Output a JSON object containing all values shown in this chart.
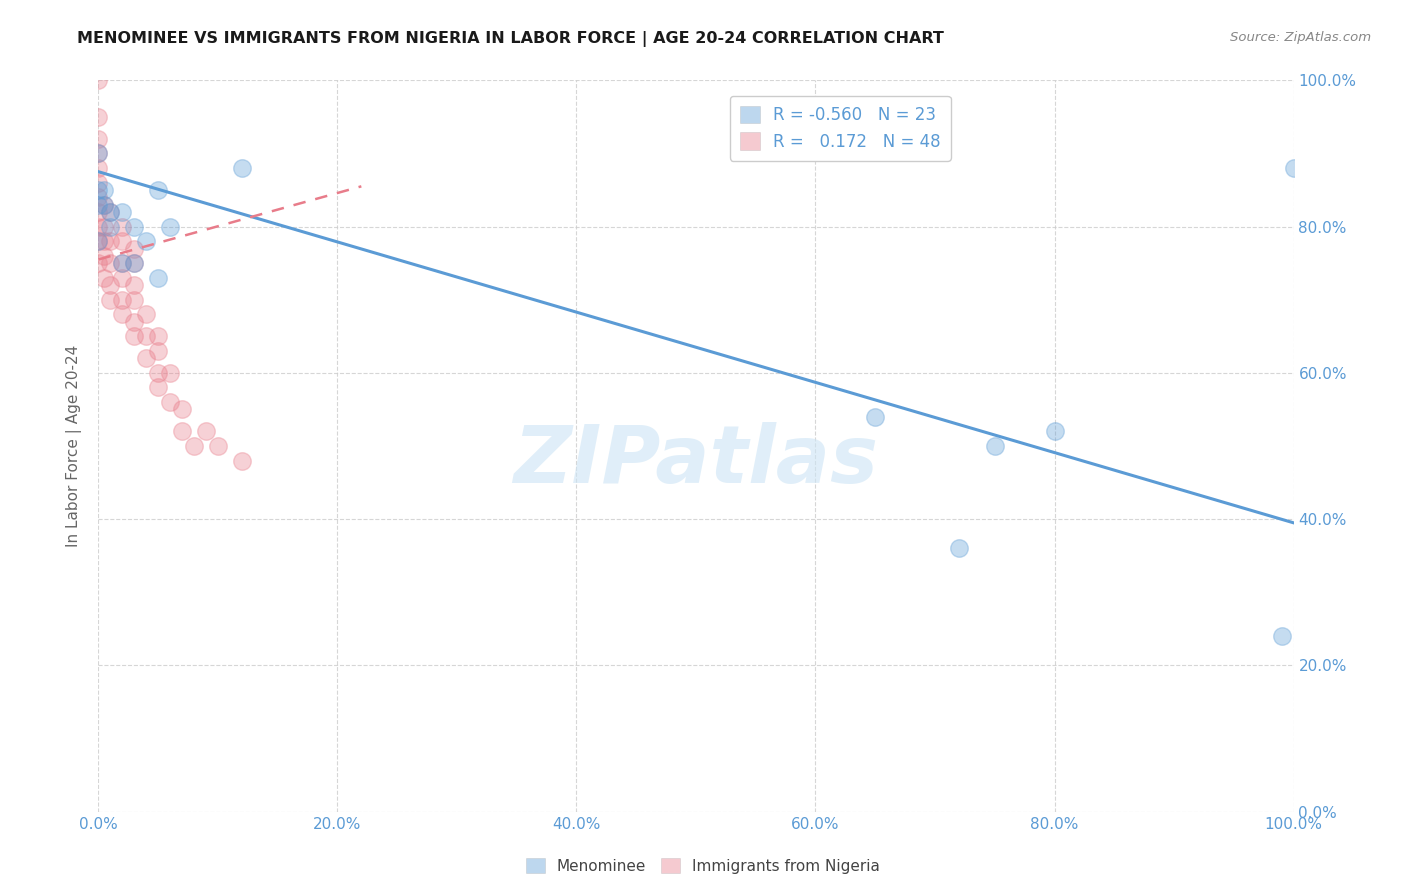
{
  "title": "MENOMINEE VS IMMIGRANTS FROM NIGERIA IN LABOR FORCE | AGE 20-24 CORRELATION CHART",
  "source": "Source: ZipAtlas.com",
  "ylabel": "In Labor Force | Age 20-24",
  "xlim": [
    0.0,
    1.0
  ],
  "ylim": [
    0.0,
    1.0
  ],
  "xtick_vals": [
    0.0,
    0.2,
    0.4,
    0.6,
    0.8,
    1.0
  ],
  "ytick_vals": [
    0.0,
    0.2,
    0.4,
    0.6,
    0.8,
    1.0
  ],
  "menominee_scatter_x": [
    0.0,
    0.0,
    0.0,
    0.0,
    0.005,
    0.005,
    0.01,
    0.01,
    0.02,
    0.02,
    0.03,
    0.03,
    0.04,
    0.05,
    0.05,
    0.06,
    0.12,
    0.65,
    0.72,
    0.75,
    0.8,
    0.99,
    1.0
  ],
  "menominee_scatter_y": [
    0.9,
    0.78,
    0.83,
    0.85,
    0.83,
    0.85,
    0.82,
    0.8,
    0.82,
    0.75,
    0.8,
    0.75,
    0.78,
    0.85,
    0.73,
    0.8,
    0.88,
    0.54,
    0.36,
    0.5,
    0.52,
    0.24,
    0.88
  ],
  "nigeria_scatter_x": [
    0.0,
    0.0,
    0.0,
    0.0,
    0.0,
    0.0,
    0.0,
    0.0,
    0.0,
    0.0,
    0.0,
    0.005,
    0.005,
    0.005,
    0.005,
    0.005,
    0.01,
    0.01,
    0.01,
    0.01,
    0.01,
    0.02,
    0.02,
    0.02,
    0.02,
    0.02,
    0.02,
    0.03,
    0.03,
    0.03,
    0.03,
    0.03,
    0.03,
    0.04,
    0.04,
    0.04,
    0.05,
    0.05,
    0.05,
    0.05,
    0.06,
    0.06,
    0.07,
    0.07,
    0.08,
    0.09,
    0.1,
    0.12
  ],
  "nigeria_scatter_y": [
    0.75,
    0.78,
    0.8,
    0.82,
    0.84,
    0.86,
    0.88,
    0.9,
    0.92,
    0.95,
    1.0,
    0.73,
    0.76,
    0.78,
    0.8,
    0.83,
    0.7,
    0.72,
    0.75,
    0.78,
    0.82,
    0.68,
    0.7,
    0.73,
    0.75,
    0.78,
    0.8,
    0.65,
    0.67,
    0.7,
    0.72,
    0.75,
    0.77,
    0.62,
    0.65,
    0.68,
    0.58,
    0.6,
    0.63,
    0.65,
    0.56,
    0.6,
    0.52,
    0.55,
    0.5,
    0.52,
    0.5,
    0.48
  ],
  "menominee_line_x": [
    0.0,
    1.0
  ],
  "menominee_line_y": [
    0.875,
    0.395
  ],
  "nigeria_line_x": [
    0.0,
    0.22
  ],
  "nigeria_line_y": [
    0.755,
    0.855
  ],
  "menominee_color": "#5b9bd5",
  "nigeria_color": "#e87c8a",
  "watermark_text": "ZIPatlas",
  "background_color": "#ffffff",
  "grid_color": "#cccccc",
  "legend_r1": "R = -0.560",
  "legend_n1": "N = 23",
  "legend_r2": "R =   0.172",
  "legend_n2": "N = 48",
  "tick_color": "#5b9bd5"
}
